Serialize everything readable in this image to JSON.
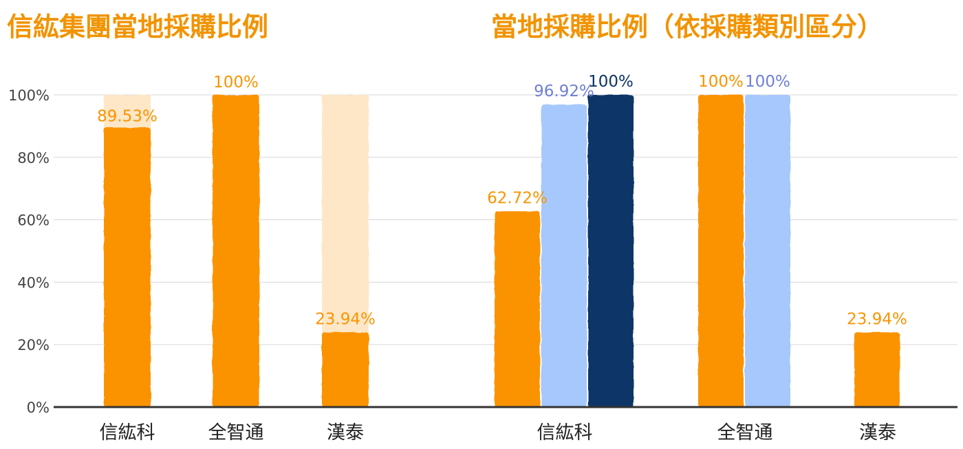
{
  "titles": {
    "left": "信紘集團當地採購比例",
    "right": "當地採購比例（依採購類別區分）"
  },
  "colors": {
    "orange": "#fb9300",
    "orange_light": "#fde7c7",
    "blue_light": "#a6c8fc",
    "navy": "#0b3467",
    "title": "#f29300",
    "grid": "#d7d7d7",
    "axis": "#333333"
  },
  "chart_data": [
    {
      "type": "bar",
      "title": "信紘集團當地採購比例",
      "categories": [
        "信紘科",
        "全智通",
        "漢泰"
      ],
      "series": [
        {
          "values": [
            89.53,
            100,
            23.94
          ],
          "labels": [
            "89.53%",
            "100%",
            "23.94%"
          ]
        }
      ],
      "background_bars": [
        100,
        100,
        100
      ],
      "yticks": [
        "0%",
        "20%",
        "40%",
        "60%",
        "80%",
        "100%"
      ],
      "ylim": [
        0,
        100
      ],
      "grid": true
    },
    {
      "type": "bar",
      "title": "當地採購比例（依採購類別區分）",
      "categories": [
        "信紘科",
        "全智通",
        "漢泰"
      ],
      "series": [
        {
          "values": [
            62.72,
            100,
            23.94
          ],
          "labels": [
            "62.72%",
            "100%",
            "23.94%"
          ]
        },
        {
          "values": [
            96.92,
            100,
            null
          ],
          "labels": [
            "96.92%",
            "100%",
            ""
          ]
        },
        {
          "values": [
            100,
            null,
            null
          ],
          "labels": [
            "100%",
            "",
            ""
          ]
        }
      ],
      "ylim": [
        0,
        100
      ],
      "grid": true
    }
  ]
}
